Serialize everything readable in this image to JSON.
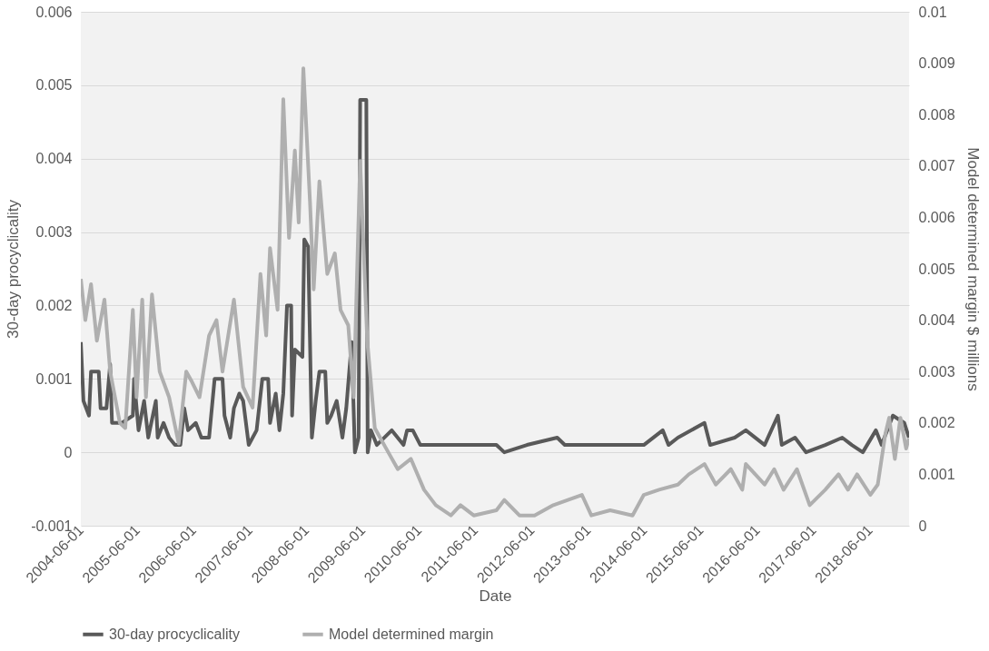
{
  "chart_data": {
    "type": "line",
    "xlabel": "Date",
    "ylabel": "30-day procyclicality",
    "y2label": "Model determined  margin $ millions",
    "xlim": [
      "2004-06-01",
      "2019-02-10"
    ],
    "xticks": [
      "2004-06-01",
      "2005-06-01",
      "2006-06-01",
      "2007-06-01",
      "2008-06-01",
      "2009-06-01",
      "2010-06-01",
      "2011-06-01",
      "2012-06-01",
      "2013-06-01",
      "2014-06-01",
      "2015-06-01",
      "2016-06-01",
      "2017-06-01",
      "2018-06-01"
    ],
    "ylim": [
      -0.001,
      0.006
    ],
    "yticks": [
      -0.001,
      0,
      0.001,
      0.002,
      0.003,
      0.004,
      0.005,
      0.006
    ],
    "y2lim": [
      0,
      0.01
    ],
    "y2ticks": [
      0,
      0.001,
      0.002,
      0.003,
      0.004,
      0.005,
      0.006,
      0.007,
      0.008,
      0.009,
      0.01
    ],
    "grid": "y",
    "legend": "bottom",
    "line_style": "solid",
    "marker": "none",
    "series": [
      {
        "name": "30-day procyclicality",
        "color": "#595959",
        "axis": "y",
        "x": [
          "2004-06-01",
          "2004-06-18",
          "2004-07-24",
          "2004-08-06",
          "2004-09-25",
          "2004-10-07",
          "2004-11-14",
          "2004-12-08",
          "2004-12-20",
          "2005-02-21",
          "2005-05-04",
          "2005-05-12",
          "2005-06-10",
          "2005-07-16",
          "2005-08-12",
          "2005-09-30",
          "2005-10-12",
          "2005-11-19",
          "2005-12-25",
          "2006-02-01",
          "2006-03-08",
          "2006-04-02",
          "2006-04-27",
          "2006-06-16",
          "2006-07-22",
          "2006-09-10",
          "2006-10-16",
          "2006-12-06",
          "2006-12-19",
          "2007-01-25",
          "2007-02-18",
          "2007-03-25",
          "2007-04-19",
          "2007-05-25",
          "2007-07-15",
          "2007-08-21",
          "2007-09-28",
          "2007-10-10",
          "2007-11-16",
          "2007-12-10",
          "2008-01-04",
          "2008-01-28",
          "2008-02-24",
          "2008-03-01",
          "2008-03-19",
          "2008-05-07",
          "2008-05-19",
          "2008-06-13",
          "2008-07-07",
          "2008-08-01",
          "2008-08-25",
          "2008-10-02",
          "2008-10-15",
          "2008-11-09",
          "2008-12-15",
          "2009-01-21",
          "2009-02-15",
          "2009-03-22",
          "2009-04-12",
          "2009-05-06",
          "2009-05-16",
          "2009-06-25",
          "2009-07-04",
          "2009-07-25",
          "2009-09-01",
          "2009-12-07",
          "2010-02-21",
          "2010-03-16",
          "2010-04-22",
          "2010-06-10",
          "2010-09-18",
          "2010-11-19",
          "2010-12-25",
          "2011-03-08",
          "2011-05-22",
          "2011-10-16",
          "2011-12-06",
          "2012-05-01",
          "2012-11-13",
          "2013-01-01",
          "2013-05-03",
          "2013-11-16",
          "2014-04-10",
          "2014-05-28",
          "2014-09-28",
          "2014-11-04",
          "2015-01-04",
          "2015-06-25",
          "2015-08-01",
          "2016-01-07",
          "2016-03-19",
          "2016-07-19",
          "2016-10-13",
          "2016-11-07",
          "2017-02-01",
          "2017-04-13",
          "2017-08-16",
          "2017-12-04",
          "2018-02-04",
          "2018-04-16",
          "2018-07-10",
          "2018-08-16",
          "2018-10-28",
          "2019-01-10",
          "2019-02-09"
        ],
        "values": [
          0.0015,
          0.0007,
          0.0005,
          0.0011,
          0.0011,
          0.0006,
          0.0006,
          0.0012,
          0.0004,
          0.0004,
          0.0005,
          0.001,
          0.0003,
          0.0007,
          0.0002,
          0.0007,
          0.0002,
          0.0004,
          0.0002,
          0.0001,
          0.0001,
          0.0006,
          0.0003,
          0.0004,
          0.0002,
          0.0002,
          0.001,
          0.001,
          0.0005,
          0.0002,
          0.0006,
          0.0008,
          0.0007,
          0.0001,
          0.0003,
          0.001,
          0.001,
          0.0004,
          0.0008,
          0.0003,
          0.0008,
          0.002,
          0.002,
          0.0005,
          0.0014,
          0.0013,
          0.0029,
          0.0028,
          0.0002,
          0.0007,
          0.0011,
          0.0011,
          0.0004,
          0.0005,
          0.0007,
          0.0002,
          0.0006,
          0.0015,
          0.0,
          0.0002,
          0.0048,
          0.0048,
          0.0,
          0.0003,
          0.0001,
          0.0003,
          0.0001,
          0.0003,
          0.0003,
          0.0001,
          0.0001,
          0.0001,
          0.0001,
          0.0001,
          0.0001,
          0.0001,
          0.0,
          0.0001,
          0.0002,
          0.0001,
          0.0001,
          0.0001,
          0.0001,
          0.0001,
          0.0003,
          0.0001,
          0.0002,
          0.0004,
          0.0001,
          0.0002,
          0.0003,
          0.0001,
          0.0005,
          0.0001,
          0.0002,
          0.0,
          0.0001,
          0.0002,
          0.0001,
          0.0,
          0.0003,
          0.0001,
          0.0005,
          0.0004,
          0.0002
        ]
      },
      {
        "name": "Model determined margin",
        "color": "#afafaf",
        "axis": "y2",
        "x": [
          "2004-06-01",
          "2004-06-30",
          "2004-08-06",
          "2004-09-13",
          "2004-11-01",
          "2004-12-08",
          "2005-02-09",
          "2005-03-16",
          "2005-05-04",
          "2005-05-28",
          "2005-07-04",
          "2005-07-28",
          "2005-09-05",
          "2005-10-25",
          "2005-12-25",
          "2006-02-25",
          "2006-04-15",
          "2006-05-22",
          "2006-07-10",
          "2006-09-10",
          "2006-10-28",
          "2006-12-06",
          "2007-02-18",
          "2007-04-19",
          "2007-06-19",
          "2007-08-09",
          "2007-09-15",
          "2007-10-10",
          "2007-11-28",
          "2008-01-04",
          "2008-02-10",
          "2008-03-19",
          "2008-04-13",
          "2008-05-13",
          "2008-06-25",
          "2008-07-19",
          "2008-08-25",
          "2008-10-15",
          "2008-12-03",
          "2009-01-09",
          "2009-02-28",
          "2009-04-04",
          "2009-05-16",
          "2009-07-01",
          "2009-08-19",
          "2009-11-01",
          "2010-01-15",
          "2010-04-10",
          "2010-07-04",
          "2010-09-18",
          "2010-12-25",
          "2011-02-25",
          "2011-05-22",
          "2011-10-16",
          "2011-12-06",
          "2012-03-13",
          "2012-06-19",
          "2012-10-19",
          "2013-04-22",
          "2013-06-22",
          "2013-10-22",
          "2014-03-16",
          "2014-05-28",
          "2014-09-04",
          "2015-01-04",
          "2015-03-16",
          "2015-06-25",
          "2015-09-07",
          "2015-12-13",
          "2016-02-25",
          "2016-03-19",
          "2016-07-19",
          "2016-09-19",
          "2016-11-19",
          "2017-02-13",
          "2017-05-07",
          "2017-08-16",
          "2017-11-10",
          "2018-01-10",
          "2018-03-10",
          "2018-06-04",
          "2018-07-22",
          "2018-09-10",
          "2018-10-04",
          "2018-11-10",
          "2018-12-16",
          "2019-01-22",
          "2019-02-09"
        ],
        "values": [
          0.0048,
          0.004,
          0.0047,
          0.0036,
          0.0044,
          0.003,
          0.002,
          0.0019,
          0.0042,
          0.0025,
          0.0044,
          0.0025,
          0.0045,
          0.003,
          0.0025,
          0.0016,
          0.003,
          0.0028,
          0.0025,
          0.0037,
          0.004,
          0.003,
          0.0044,
          0.0027,
          0.0023,
          0.0049,
          0.0037,
          0.0054,
          0.0042,
          0.0083,
          0.0056,
          0.0073,
          0.0059,
          0.0089,
          0.0063,
          0.0046,
          0.0067,
          0.0049,
          0.0053,
          0.0042,
          0.0039,
          0.0025,
          0.0071,
          0.0036,
          0.0019,
          0.0015,
          0.0011,
          0.0013,
          0.0007,
          0.0004,
          0.0002,
          0.0004,
          0.0002,
          0.0003,
          0.0005,
          0.0002,
          0.0002,
          0.0004,
          0.0006,
          0.0002,
          0.0003,
          0.0002,
          0.0006,
          0.0007,
          0.0008,
          0.001,
          0.0012,
          0.0008,
          0.0011,
          0.0007,
          0.0012,
          0.0008,
          0.0011,
          0.0007,
          0.0011,
          0.0004,
          0.0007,
          0.001,
          0.0007,
          0.001,
          0.0006,
          0.0008,
          0.0018,
          0.0021,
          0.0013,
          0.0021,
          0.0015,
          0.0017
        ]
      }
    ]
  }
}
